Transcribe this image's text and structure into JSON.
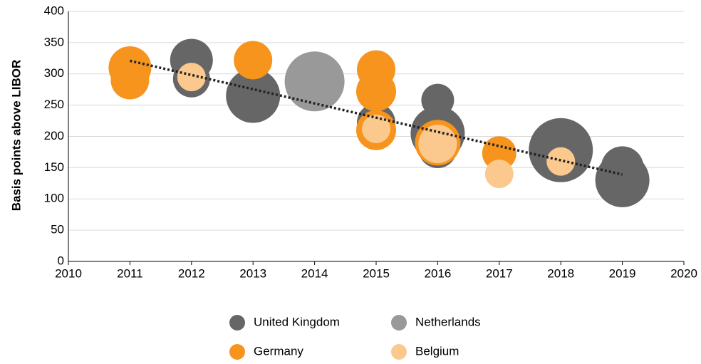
{
  "chart_data": {
    "type": "bubble",
    "y_label": "Basis points above LIBOR",
    "xlim": [
      2010,
      2020
    ],
    "xticks": [
      2010,
      2011,
      2012,
      2013,
      2014,
      2015,
      2016,
      2017,
      2018,
      2019,
      2020
    ],
    "ylim": [
      0,
      400
    ],
    "yticks": [
      0,
      50,
      100,
      150,
      200,
      250,
      300,
      350,
      400
    ],
    "grid": true,
    "legend": "bottom",
    "series": [
      {
        "name": "United Kingdom",
        "color": "#666666",
        "x": [
          2012,
          2012,
          2013,
          2015,
          2016,
          2016,
          2016,
          2018,
          2019,
          2019
        ],
        "values": [
          322,
          292,
          265,
          222,
          258,
          205,
          180,
          178,
          150,
          130
        ],
        "sizes": [
          30,
          26,
          38,
          27,
          23,
          38,
          27,
          45,
          30,
          38
        ]
      },
      {
        "name": "Netherlands",
        "color": "#999999",
        "x": [
          2014
        ],
        "values": [
          288
        ],
        "sizes": [
          42
        ]
      },
      {
        "name": "Germany",
        "color": "#f7941d",
        "x": [
          2011,
          2011,
          2013,
          2015,
          2015,
          2015,
          2016,
          2017
        ],
        "values": [
          310,
          290,
          322,
          307,
          272,
          210,
          190,
          173
        ],
        "sizes": [
          30,
          27,
          27,
          27,
          28,
          28,
          32,
          24
        ]
      },
      {
        "name": "Belgium",
        "color": "#fbc98e",
        "x": [
          2012,
          2015,
          2016,
          2017,
          2018
        ],
        "values": [
          295,
          212,
          188,
          140,
          160
        ],
        "sizes": [
          20,
          20,
          27,
          20,
          20
        ]
      }
    ],
    "trendline": {
      "x": [
        2011,
        2019
      ],
      "values": [
        321,
        139
      ],
      "color": "#222222"
    }
  }
}
